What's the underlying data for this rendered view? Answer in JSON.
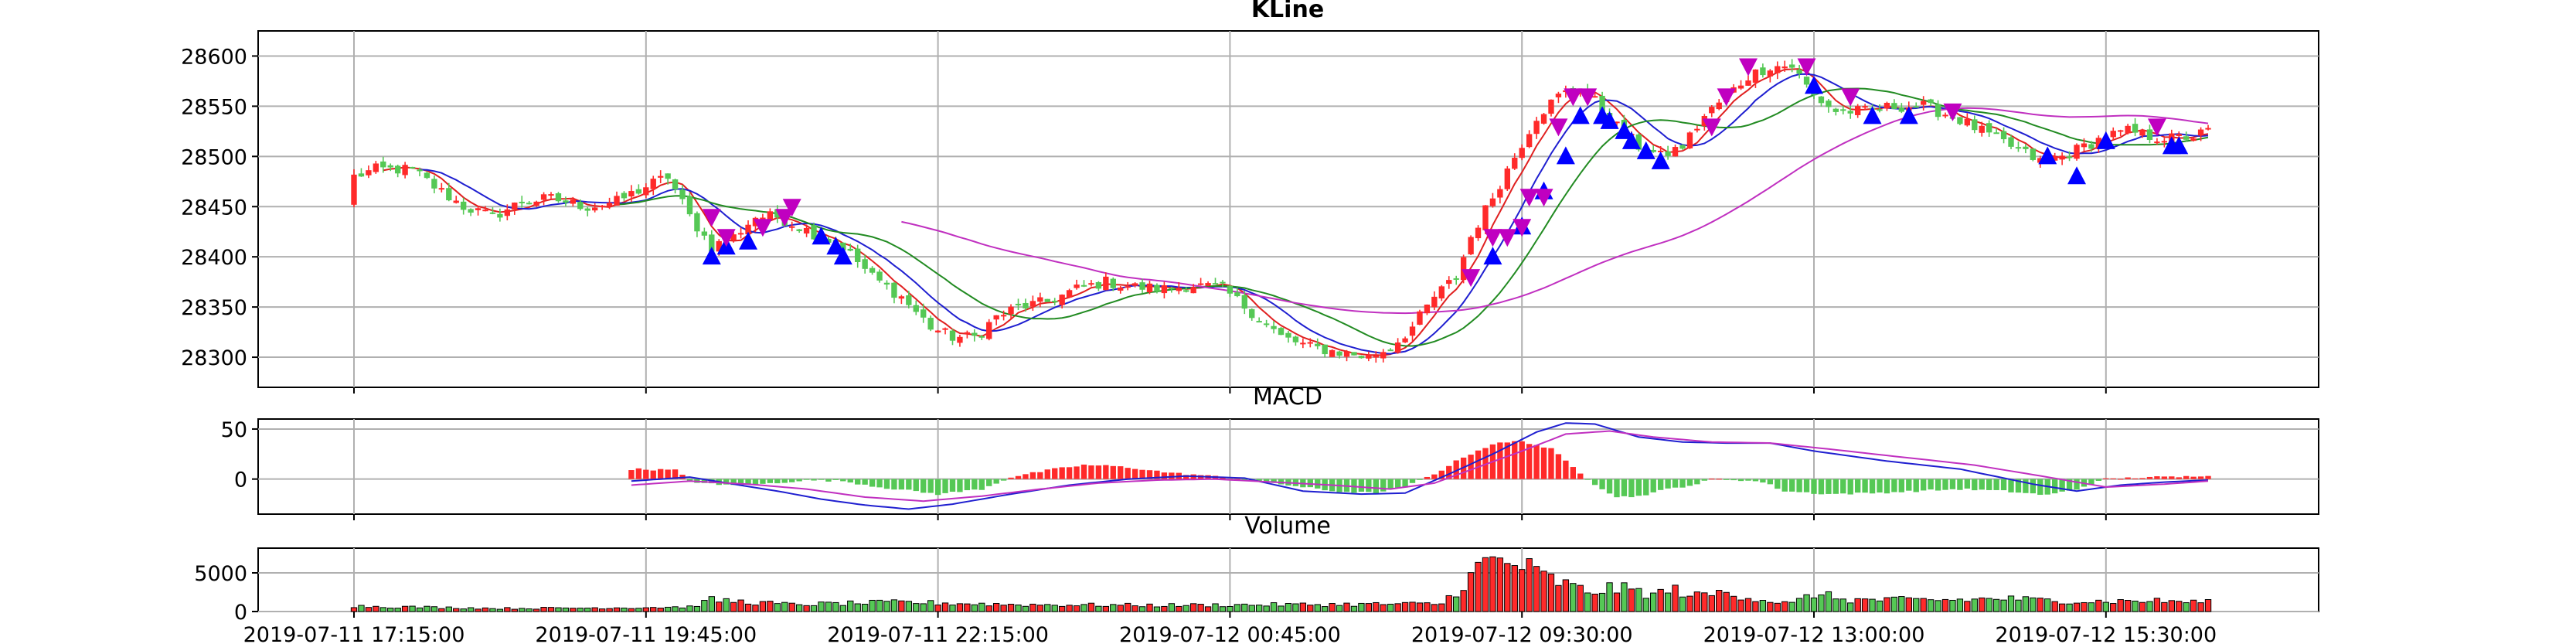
{
  "chart_data": [
    {
      "type": "candlestick",
      "title": "KLine",
      "ylim": [
        28270,
        28625
      ],
      "y_ticks": [
        28300,
        28350,
        28400,
        28450,
        28500,
        28550,
        28600
      ],
      "grid": true,
      "colors": {
        "up": "#ff2a2a",
        "down": "#55c855",
        "ma_fast": "#e02020",
        "ma_mid": "#1f1fd0",
        "ma_slow": "#228B22",
        "ma_long": "#c030c0",
        "buy": "#0000ff",
        "sell": "#c000c0"
      },
      "anchors": [
        [
          0,
          28480
        ],
        [
          3,
          28487
        ],
        [
          8,
          28487
        ],
        [
          11,
          28470
        ],
        [
          15,
          28450
        ],
        [
          19,
          28440
        ],
        [
          23,
          28455
        ],
        [
          27,
          28458
        ],
        [
          32,
          28450
        ],
        [
          36,
          28455
        ],
        [
          40,
          28470
        ],
        [
          43,
          28480
        ],
        [
          46,
          28440
        ],
        [
          49,
          28410
        ],
        [
          52,
          28420
        ],
        [
          55,
          28440
        ],
        [
          58,
          28440
        ],
        [
          61,
          28430
        ],
        [
          64,
          28420
        ],
        [
          67,
          28410
        ],
        [
          71,
          28380
        ],
        [
          75,
          28360
        ],
        [
          79,
          28330
        ],
        [
          82,
          28320
        ],
        [
          85,
          28320
        ],
        [
          88,
          28340
        ],
        [
          91,
          28350
        ],
        [
          95,
          28355
        ],
        [
          99,
          28368
        ],
        [
          103,
          28375
        ],
        [
          107,
          28370
        ],
        [
          111,
          28368
        ],
        [
          115,
          28372
        ],
        [
          119,
          28368
        ],
        [
          123,
          28345
        ],
        [
          127,
          28320
        ],
        [
          131,
          28310
        ],
        [
          135,
          28305
        ],
        [
          139,
          28300
        ],
        [
          142,
          28310
        ],
        [
          145,
          28330
        ],
        [
          148,
          28360
        ],
        [
          151,
          28380
        ],
        [
          153,
          28420
        ],
        [
          156,
          28460
        ],
        [
          159,
          28500
        ],
        [
          162,
          28540
        ],
        [
          165,
          28560
        ],
        [
          168,
          28570
        ],
        [
          170,
          28555
        ],
        [
          173,
          28530
        ],
        [
          176,
          28510
        ],
        [
          179,
          28500
        ],
        [
          182,
          28510
        ],
        [
          185,
          28540
        ],
        [
          188,
          28560
        ],
        [
          191,
          28580
        ],
        [
          194,
          28590
        ],
        [
          197,
          28590
        ],
        [
          200,
          28560
        ],
        [
          203,
          28545
        ],
        [
          207,
          28545
        ],
        [
          211,
          28550
        ],
        [
          215,
          28550
        ],
        [
          219,
          28540
        ],
        [
          223,
          28525
        ],
        [
          227,
          28510
        ],
        [
          231,
          28495
        ],
        [
          234,
          28500
        ],
        [
          237,
          28510
        ],
        [
          240,
          28520
        ],
        [
          243,
          28525
        ],
        [
          246,
          28520
        ],
        [
          249,
          28518
        ],
        [
          252,
          28520
        ],
        [
          254,
          28525
        ]
      ],
      "buy_signals": [
        [
          49,
          28400
        ],
        [
          51,
          28410
        ],
        [
          54,
          28415
        ],
        [
          64,
          28420
        ],
        [
          66,
          28410
        ],
        [
          67,
          28400
        ],
        [
          156,
          28400
        ],
        [
          160,
          28430
        ],
        [
          163,
          28465
        ],
        [
          166,
          28500
        ],
        [
          168,
          28540
        ],
        [
          171,
          28540
        ],
        [
          172,
          28535
        ],
        [
          174,
          28525
        ],
        [
          175,
          28515
        ],
        [
          177,
          28505
        ],
        [
          179,
          28495
        ],
        [
          200,
          28570
        ],
        [
          208,
          28540
        ],
        [
          213,
          28540
        ],
        [
          232,
          28500
        ],
        [
          236,
          28480
        ],
        [
          240,
          28515
        ],
        [
          249,
          28510
        ],
        [
          250,
          28510
        ]
      ],
      "sell_signals": [
        [
          49,
          28440
        ],
        [
          51,
          28420
        ],
        [
          56,
          28430
        ],
        [
          59,
          28440
        ],
        [
          60,
          28450
        ],
        [
          153,
          28380
        ],
        [
          156,
          28420
        ],
        [
          158,
          28420
        ],
        [
          160,
          28430
        ],
        [
          161,
          28460
        ],
        [
          163,
          28460
        ],
        [
          165,
          28530
        ],
        [
          167,
          28560
        ],
        [
          169,
          28560
        ],
        [
          186,
          28530
        ],
        [
          188,
          28560
        ],
        [
          191,
          28590
        ],
        [
          199,
          28590
        ],
        [
          205,
          28560
        ],
        [
          219,
          28545
        ],
        [
          247,
          28530
        ]
      ]
    },
    {
      "type": "macd",
      "title": "MACD",
      "ylim": [
        -35,
        60
      ],
      "y_ticks": [
        0,
        50
      ],
      "grid": true,
      "colors": {
        "pos": "#ff2a2a",
        "neg": "#55c855",
        "dif": "#1f1fd0",
        "dea": "#c030c0"
      },
      "hist_anchors": [
        [
          38,
          10
        ],
        [
          44,
          9
        ],
        [
          46,
          -2
        ],
        [
          50,
          -6
        ],
        [
          56,
          -5
        ],
        [
          62,
          -1
        ],
        [
          67,
          -2
        ],
        [
          72,
          -8
        ],
        [
          80,
          -15
        ],
        [
          86,
          -10
        ],
        [
          90,
          2
        ],
        [
          96,
          10
        ],
        [
          100,
          14
        ],
        [
          104,
          13
        ],
        [
          108,
          10
        ],
        [
          112,
          6
        ],
        [
          116,
          4
        ],
        [
          120,
          1
        ],
        [
          124,
          -2
        ],
        [
          128,
          -6
        ],
        [
          134,
          -12
        ],
        [
          140,
          -14
        ],
        [
          144,
          -8
        ],
        [
          148,
          5
        ],
        [
          152,
          22
        ],
        [
          156,
          35
        ],
        [
          160,
          38
        ],
        [
          164,
          30
        ],
        [
          167,
          12
        ],
        [
          170,
          -5
        ],
        [
          173,
          -18
        ],
        [
          176,
          -17
        ],
        [
          180,
          -10
        ],
        [
          184,
          -5
        ],
        [
          186,
          0
        ],
        [
          190,
          -1
        ],
        [
          193,
          -3
        ],
        [
          196,
          -12
        ],
        [
          202,
          -15
        ],
        [
          208,
          -14
        ],
        [
          214,
          -12
        ],
        [
          220,
          -10
        ],
        [
          226,
          -12
        ],
        [
          232,
          -16
        ],
        [
          236,
          -10
        ],
        [
          240,
          0
        ],
        [
          246,
          2
        ],
        [
          250,
          2
        ],
        [
          254,
          4
        ]
      ],
      "dif_anchors": [
        [
          38,
          -2
        ],
        [
          46,
          2
        ],
        [
          52,
          -5
        ],
        [
          58,
          -12
        ],
        [
          64,
          -20
        ],
        [
          70,
          -26
        ],
        [
          76,
          -30
        ],
        [
          82,
          -25
        ],
        [
          90,
          -15
        ],
        [
          98,
          -6
        ],
        [
          106,
          0
        ],
        [
          114,
          3
        ],
        [
          122,
          1
        ],
        [
          130,
          -12
        ],
        [
          138,
          -15
        ],
        [
          144,
          -14
        ],
        [
          150,
          5
        ],
        [
          156,
          25
        ],
        [
          162,
          47
        ],
        [
          166,
          56
        ],
        [
          170,
          55
        ],
        [
          176,
          42
        ],
        [
          182,
          37
        ],
        [
          188,
          36
        ],
        [
          194,
          36
        ],
        [
          200,
          28
        ],
        [
          210,
          18
        ],
        [
          220,
          10
        ],
        [
          230,
          -5
        ],
        [
          236,
          -12
        ],
        [
          242,
          -6
        ],
        [
          248,
          -3
        ],
        [
          254,
          -1
        ]
      ],
      "dea_anchors": [
        [
          38,
          -6
        ],
        [
          46,
          -2
        ],
        [
          54,
          -5
        ],
        [
          62,
          -10
        ],
        [
          70,
          -18
        ],
        [
          78,
          -22
        ],
        [
          86,
          -17
        ],
        [
          94,
          -10
        ],
        [
          102,
          -4
        ],
        [
          110,
          -1
        ],
        [
          118,
          0
        ],
        [
          126,
          -3
        ],
        [
          134,
          -6
        ],
        [
          142,
          -10
        ],
        [
          148,
          -4
        ],
        [
          154,
          12
        ],
        [
          160,
          28
        ],
        [
          166,
          45
        ],
        [
          172,
          48
        ],
        [
          178,
          42
        ],
        [
          186,
          37
        ],
        [
          194,
          36
        ],
        [
          202,
          30
        ],
        [
          212,
          22
        ],
        [
          222,
          14
        ],
        [
          232,
          2
        ],
        [
          240,
          -8
        ],
        [
          248,
          -5
        ],
        [
          254,
          -2
        ]
      ]
    },
    {
      "type": "bar",
      "title": "Volume",
      "ylim": [
        0,
        8200
      ],
      "y_ticks": [
        0,
        5000
      ],
      "grid": true,
      "colors": {
        "up": "#ff2a2a",
        "down": "#55c855",
        "edge": "#000000"
      },
      "volume_anchors": [
        [
          0,
          700
        ],
        [
          20,
          400
        ],
        [
          38,
          500
        ],
        [
          46,
          600
        ],
        [
          49,
          1500
        ],
        [
          60,
          900
        ],
        [
          75,
          1200
        ],
        [
          90,
          900
        ],
        [
          110,
          800
        ],
        [
          130,
          900
        ],
        [
          149,
          1000
        ],
        [
          152,
          3500
        ],
        [
          155,
          6500
        ],
        [
          160,
          6000
        ],
        [
          163,
          4500
        ],
        [
          166,
          3500
        ],
        [
          169,
          2500
        ],
        [
          172,
          3000
        ],
        [
          175,
          2800
        ],
        [
          178,
          2200
        ],
        [
          181,
          2800
        ],
        [
          184,
          2000
        ],
        [
          188,
          2500
        ],
        [
          193,
          1500
        ],
        [
          197,
          1000
        ],
        [
          200,
          2300
        ],
        [
          205,
          1500
        ],
        [
          212,
          1500
        ],
        [
          220,
          1500
        ],
        [
          226,
          1700
        ],
        [
          230,
          1500
        ],
        [
          238,
          1300
        ],
        [
          246,
          1400
        ],
        [
          254,
          1200
        ]
      ],
      "x_tick_labels": [
        "2019-07-11 17:15:00",
        "2019-07-11 19:45:00",
        "2019-07-11 22:15:00",
        "2019-07-12 00:45:00",
        "2019-07-12 09:30:00",
        "2019-07-12 13:00:00",
        "2019-07-12 15:30:00"
      ],
      "x_tick_positions": [
        0,
        40,
        80,
        120,
        160,
        200,
        240
      ]
    }
  ]
}
